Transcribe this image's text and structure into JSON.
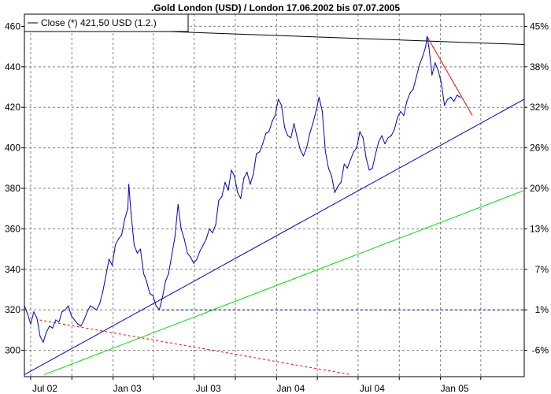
{
  "chart_data": {
    "type": "line",
    "title": ".Gold London (USD) / London 17.06.2002 bis 07.07.2005",
    "xlabel": "",
    "ylabel": "",
    "x_tick_labels": [
      "Jul 02",
      "Jan 03",
      "Jul 03",
      "Jan 04",
      "Jul 04",
      "Jan 05"
    ],
    "x_tick_dates": [
      "2002-07-01",
      "2003-01-01",
      "2003-07-01",
      "2004-01-01",
      "2004-07-01",
      "2005-01-01"
    ],
    "xlim": [
      "2002-06-17",
      "2005-07-07"
    ],
    "y_left_ticks": [
      300,
      320,
      340,
      360,
      380,
      400,
      420,
      440,
      460
    ],
    "y_right_tick_labels": [
      "-6%",
      "1%",
      "7%",
      "13%",
      "20%",
      "26%",
      "32%",
      "38%",
      "45%"
    ],
    "ylim": [
      287,
      466
    ],
    "grid": true,
    "legend_position": "top-left",
    "series": [
      {
        "name": "Close (*) 421,50 USD (1.2.)",
        "color": "#0000cc",
        "points": [
          [
            "2002-06-17",
            322
          ],
          [
            "2002-06-24",
            318
          ],
          [
            "2002-07-01",
            313
          ],
          [
            "2002-07-08",
            319
          ],
          [
            "2002-07-15",
            316
          ],
          [
            "2002-07-22",
            307
          ],
          [
            "2002-07-29",
            304
          ],
          [
            "2002-08-05",
            309
          ],
          [
            "2002-08-12",
            312
          ],
          [
            "2002-08-19",
            311
          ],
          [
            "2002-08-26",
            315
          ],
          [
            "2002-09-02",
            314
          ],
          [
            "2002-09-09",
            319
          ],
          [
            "2002-09-16",
            320
          ],
          [
            "2002-09-23",
            322
          ],
          [
            "2002-09-30",
            317
          ],
          [
            "2002-10-07",
            315
          ],
          [
            "2002-10-14",
            313
          ],
          [
            "2002-10-21",
            312
          ],
          [
            "2002-10-28",
            315
          ],
          [
            "2002-11-04",
            319
          ],
          [
            "2002-11-11",
            322
          ],
          [
            "2002-11-18",
            321
          ],
          [
            "2002-11-25",
            320
          ],
          [
            "2002-12-02",
            323
          ],
          [
            "2002-12-09",
            329
          ],
          [
            "2002-12-16",
            337
          ],
          [
            "2002-12-23",
            345
          ],
          [
            "2002-12-30",
            342
          ],
          [
            "2003-01-06",
            352
          ],
          [
            "2003-01-13",
            355
          ],
          [
            "2003-01-20",
            357
          ],
          [
            "2003-01-27",
            365
          ],
          [
            "2003-02-03",
            370
          ],
          [
            "2003-02-05",
            382
          ],
          [
            "2003-02-10",
            368
          ],
          [
            "2003-02-17",
            352
          ],
          [
            "2003-02-24",
            348
          ],
          [
            "2003-03-03",
            350
          ],
          [
            "2003-03-10",
            338
          ],
          [
            "2003-03-17",
            334
          ],
          [
            "2003-03-24",
            328
          ],
          [
            "2003-03-31",
            327
          ],
          [
            "2003-04-07",
            322
          ],
          [
            "2003-04-14",
            320
          ],
          [
            "2003-04-21",
            326
          ],
          [
            "2003-04-28",
            334
          ],
          [
            "2003-05-05",
            338
          ],
          [
            "2003-05-12",
            347
          ],
          [
            "2003-05-19",
            356
          ],
          [
            "2003-05-26",
            372
          ],
          [
            "2003-06-02",
            360
          ],
          [
            "2003-06-09",
            355
          ],
          [
            "2003-06-16",
            348
          ],
          [
            "2003-06-23",
            346
          ],
          [
            "2003-06-30",
            343
          ],
          [
            "2003-07-07",
            345
          ],
          [
            "2003-07-14",
            349
          ],
          [
            "2003-07-21",
            352
          ],
          [
            "2003-07-28",
            355
          ],
          [
            "2003-08-04",
            360
          ],
          [
            "2003-08-11",
            358
          ],
          [
            "2003-08-18",
            362
          ],
          [
            "2003-08-25",
            374
          ],
          [
            "2003-09-01",
            376
          ],
          [
            "2003-09-08",
            383
          ],
          [
            "2003-09-15",
            379
          ],
          [
            "2003-09-22",
            389
          ],
          [
            "2003-09-29",
            386
          ],
          [
            "2003-10-06",
            378
          ],
          [
            "2003-10-13",
            375
          ],
          [
            "2003-10-20",
            385
          ],
          [
            "2003-10-27",
            388
          ],
          [
            "2003-11-03",
            382
          ],
          [
            "2003-11-10",
            387
          ],
          [
            "2003-11-17",
            397
          ],
          [
            "2003-11-24",
            398
          ],
          [
            "2003-12-01",
            402
          ],
          [
            "2003-12-08",
            407
          ],
          [
            "2003-12-15",
            408
          ],
          [
            "2003-12-22",
            413
          ],
          [
            "2003-12-29",
            416
          ],
          [
            "2004-01-05",
            424
          ],
          [
            "2004-01-12",
            421
          ],
          [
            "2004-01-19",
            410
          ],
          [
            "2004-01-26",
            406
          ],
          [
            "2004-02-02",
            405
          ],
          [
            "2004-02-09",
            412
          ],
          [
            "2004-02-16",
            405
          ],
          [
            "2004-02-23",
            399
          ],
          [
            "2004-03-01",
            396
          ],
          [
            "2004-03-08",
            400
          ],
          [
            "2004-03-15",
            407
          ],
          [
            "2004-03-22",
            412
          ],
          [
            "2004-03-29",
            418
          ],
          [
            "2004-04-05",
            425
          ],
          [
            "2004-04-12",
            418
          ],
          [
            "2004-04-19",
            398
          ],
          [
            "2004-04-26",
            390
          ],
          [
            "2004-05-03",
            386
          ],
          [
            "2004-05-10",
            378
          ],
          [
            "2004-05-17",
            381
          ],
          [
            "2004-05-24",
            383
          ],
          [
            "2004-05-31",
            392
          ],
          [
            "2004-06-07",
            390
          ],
          [
            "2004-06-14",
            394
          ],
          [
            "2004-06-21",
            398
          ],
          [
            "2004-06-28",
            400
          ],
          [
            "2004-07-05",
            408
          ],
          [
            "2004-07-12",
            405
          ],
          [
            "2004-07-19",
            395
          ],
          [
            "2004-07-26",
            389
          ],
          [
            "2004-08-02",
            390
          ],
          [
            "2004-08-09",
            397
          ],
          [
            "2004-08-16",
            403
          ],
          [
            "2004-08-23",
            406
          ],
          [
            "2004-08-30",
            402
          ],
          [
            "2004-09-06",
            405
          ],
          [
            "2004-09-13",
            406
          ],
          [
            "2004-09-20",
            409
          ],
          [
            "2004-09-27",
            415
          ],
          [
            "2004-10-04",
            418
          ],
          [
            "2004-10-11",
            416
          ],
          [
            "2004-10-18",
            423
          ],
          [
            "2004-10-25",
            427
          ],
          [
            "2004-11-01",
            429
          ],
          [
            "2004-11-08",
            435
          ],
          [
            "2004-11-15",
            441
          ],
          [
            "2004-11-22",
            445
          ],
          [
            "2004-11-29",
            450
          ],
          [
            "2004-12-02",
            455
          ],
          [
            "2004-12-06",
            450
          ],
          [
            "2004-12-13",
            436
          ],
          [
            "2004-12-20",
            442
          ],
          [
            "2004-12-27",
            438
          ],
          [
            "2005-01-03",
            432
          ],
          [
            "2005-01-10",
            421
          ],
          [
            "2005-01-17",
            424
          ],
          [
            "2005-01-24",
            425
          ],
          [
            "2005-01-31",
            423
          ],
          [
            "2005-02-07",
            426
          ],
          [
            "2005-02-14",
            425
          ]
        ]
      }
    ],
    "trend_lines": [
      {
        "name": "resistance-black",
        "color": "#000000",
        "dashed": false,
        "from": [
          "2002-06-24",
          460
        ],
        "to": [
          "2005-07-07",
          451
        ]
      },
      {
        "name": "red-falling",
        "color": "#ff0000",
        "dashed": false,
        "from": [
          "2004-12-02",
          455
        ],
        "to": [
          "2005-03-13",
          416
        ]
      },
      {
        "name": "blue-support",
        "color": "#0000cc",
        "dashed": false,
        "from": [
          "2002-06-17",
          288
        ],
        "to": [
          "2005-07-07",
          424
        ]
      },
      {
        "name": "green-parallel",
        "color": "#00dd00",
        "dashed": false,
        "from": [
          "2002-07-31",
          288
        ],
        "to": [
          "2005-07-07",
          379
        ]
      },
      {
        "name": "red-dashed-down",
        "color": "#ff0000",
        "dashed": true,
        "from": [
          "2002-07-21",
          315
        ],
        "to": [
          "2004-06-16",
          288
        ]
      },
      {
        "name": "blue-dashed-horizontal",
        "color": "#0000cc",
        "dashed": true,
        "from": [
          "2003-04-21",
          320
        ],
        "to": [
          "2005-07-07",
          320
        ]
      }
    ]
  }
}
